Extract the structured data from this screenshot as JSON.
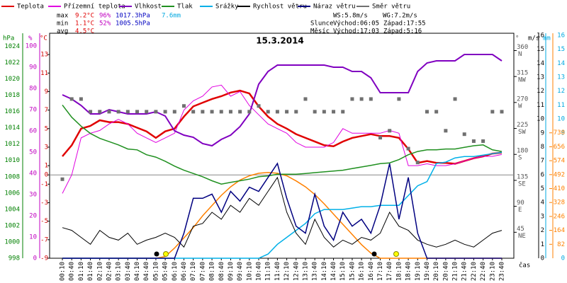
{
  "chart_data": {
    "type": "line",
    "title": "15.3.2014",
    "x_label": "čas",
    "categories": [
      "00:10",
      "00:40",
      "01:10",
      "01:40",
      "02:10",
      "02:40",
      "03:10",
      "03:40",
      "04:10",
      "04:40",
      "05:10",
      "05:40",
      "06:10",
      "06:40",
      "07:10",
      "07:40",
      "08:10",
      "08:40",
      "09:10",
      "09:40",
      "10:10",
      "10:40",
      "11:10",
      "11:40",
      "12:10",
      "12:40",
      "13:10",
      "13:40",
      "14:10",
      "14:40",
      "15:10",
      "15:40",
      "16:10",
      "16:40",
      "17:10",
      "17:40",
      "18:10",
      "18:40",
      "19:10",
      "19:40",
      "20:10",
      "20:40",
      "21:10",
      "21:40",
      "22:10",
      "22:40",
      "23:10",
      "23:40"
    ],
    "axes": {
      "pressure": {
        "label": "hPa",
        "color": "#008000",
        "lim": [
          998,
          1025.6
        ],
        "ticks": [
          998,
          1000,
          1002,
          1004,
          1006,
          1008,
          1010,
          1012,
          1014,
          1016,
          1018,
          1020,
          1022,
          1024
        ]
      },
      "humidity": {
        "label": "%",
        "color": "#c000c0",
        "lim": [
          0,
          106
        ],
        "ticks": [
          0,
          10,
          20,
          30,
          40,
          50,
          60,
          70,
          80,
          90,
          100
        ]
      },
      "temperature": {
        "label": "°C",
        "color": "#d00000",
        "lim": [
          -9,
          15.3
        ],
        "ticks": [
          -9,
          -7,
          -5,
          -3,
          -1,
          0,
          1,
          3,
          5,
          7,
          9,
          11,
          13
        ]
      },
      "direction": {
        "label": "°",
        "color": "#555555",
        "lim": [
          0,
          390
        ],
        "ticks": [
          45,
          90,
          135,
          180,
          225,
          270,
          315,
          360
        ],
        "tick_names": [
          "NE",
          "E",
          "SE",
          "S",
          "SW",
          "W",
          "NW",
          "N"
        ]
      },
      "wind": {
        "label": "m/s",
        "color": "#000000",
        "lim": [
          0,
          16.15
        ],
        "ticks": [
          0,
          1,
          2,
          3,
          4,
          5,
          6,
          7,
          8,
          9,
          10,
          11,
          12,
          13,
          14,
          15,
          16
        ]
      },
      "rain": {
        "label": "mm",
        "color": "#00a8e0",
        "lim": [
          0,
          16.15
        ],
        "ticks": [
          0,
          9,
          10,
          11,
          12,
          13,
          14,
          15,
          16
        ]
      },
      "radiation": {
        "color": "#ff8000",
        "lim": [
          0,
          1324
        ],
        "ticks": [
          82,
          164,
          246,
          328,
          410,
          492,
          574,
          656,
          738
        ]
      }
    },
    "zero_line": {
      "axis": "temperature",
      "value": 0
    },
    "series": [
      {
        "name": "Teplota",
        "color": "#e00000",
        "axis": "temperature",
        "width": 2.5,
        "values": [
          2.0,
          3.2,
          5.0,
          5.3,
          5.9,
          5.7,
          5.7,
          5.5,
          5.1,
          4.7,
          4.0,
          4.7,
          5.0,
          6.3,
          7.4,
          7.8,
          8.2,
          8.5,
          8.9,
          9.1,
          8.8,
          7.4,
          6.3,
          5.5,
          5.0,
          4.4,
          4.0,
          3.6,
          3.2,
          3.1,
          3.6,
          4.0,
          4.2,
          4.4,
          4.2,
          4.2,
          4.0,
          2.8,
          1.3,
          1.5,
          1.3,
          1.3,
          1.2,
          1.5,
          1.8,
          2.0,
          2.3,
          2.4
        ]
      },
      {
        "name": "Přízemní teplota",
        "color": "#e000e0",
        "axis": "temperature",
        "width": 1,
        "values": [
          -2.0,
          0,
          4,
          4.5,
          4.8,
          5.5,
          6,
          5.5,
          4.5,
          4,
          3.5,
          4,
          4.5,
          7,
          8,
          8.5,
          9.5,
          9.7,
          8.5,
          9,
          7.5,
          6.5,
          5.5,
          5,
          4.5,
          3.5,
          3,
          3,
          3,
          3.5,
          5,
          4.5,
          4.5,
          4.5,
          4.5,
          4.8,
          4.5,
          1,
          1,
          1.2,
          1,
          1,
          1.2,
          1.5,
          1.8,
          2.0,
          2.0,
          2.2
        ]
      },
      {
        "name": "Vlhkost",
        "color": "#8000c0",
        "axis": "humidity",
        "width": 2,
        "values": [
          77,
          75,
          72,
          68,
          68,
          70,
          69,
          68,
          68,
          68,
          69,
          67,
          60,
          58,
          57,
          54,
          53,
          56,
          58,
          62,
          68,
          82,
          88,
          91,
          91,
          91,
          91,
          91,
          91,
          90,
          90,
          88,
          88,
          85,
          78,
          78,
          78,
          78,
          88,
          92,
          93,
          93,
          93,
          96,
          96,
          96,
          96,
          93
        ]
      },
      {
        "name": "Tlak",
        "color": "#209020",
        "axis": "pressure",
        "width": 1.5,
        "values": [
          1016.8,
          1015.3,
          1014.2,
          1013.3,
          1012.7,
          1012.3,
          1011.9,
          1011.4,
          1011.3,
          1010.7,
          1010.4,
          1009.9,
          1009.3,
          1008.8,
          1008.4,
          1008.0,
          1007.5,
          1007.1,
          1007.3,
          1007.5,
          1007.7,
          1008.0,
          1008.1,
          1008.3,
          1008.3,
          1008.3,
          1008.4,
          1008.5,
          1008.6,
          1008.7,
          1008.8,
          1009.0,
          1009.2,
          1009.4,
          1009.6,
          1009.7,
          1010.1,
          1010.7,
          1011.1,
          1011.3,
          1011.3,
          1011.4,
          1011.4,
          1011.6,
          1011.8,
          1011.9,
          1011.3,
          1011.1
        ]
      },
      {
        "name": "Srážky",
        "color": "#00b0e8",
        "axis": "rain",
        "width": 1.5,
        "values": [
          0,
          0,
          0,
          0,
          0,
          0,
          0,
          0,
          0,
          0,
          0,
          0,
          0,
          0,
          0,
          0,
          0,
          0,
          0,
          0,
          0,
          0,
          0.3,
          1.0,
          1.5,
          2.0,
          2.5,
          3.2,
          3.5,
          3.5,
          3.5,
          3.6,
          3.7,
          3.7,
          3.8,
          3.8,
          3.8,
          4.5,
          5.2,
          5.5,
          6.8,
          6.9,
          7.2,
          7.3,
          7.3,
          7.4,
          7.5,
          7.6
        ]
      },
      {
        "name": "Rychlost větru",
        "color": "#000000",
        "axis": "wind",
        "width": 1,
        "values": [
          2.2,
          2.0,
          1.5,
          1.0,
          2.0,
          1.5,
          1.3,
          1.8,
          1.0,
          1.3,
          1.5,
          1.8,
          1.5,
          0.8,
          2.3,
          2.5,
          3.3,
          2.8,
          3.8,
          3.3,
          4.3,
          3.8,
          4.8,
          5.8,
          3.3,
          1.8,
          1.0,
          2.8,
          1.5,
          0.8,
          1.3,
          1.0,
          1.5,
          1.3,
          1.8,
          3.3,
          2.3,
          2.0,
          1.3,
          1.0,
          0.8,
          1.0,
          1.3,
          1.0,
          0.8,
          1.3,
          1.8,
          2.0
        ]
      },
      {
        "name": "Náraz větru",
        "color": "#000080",
        "axis": "wind",
        "width": 1.5,
        "values": [
          0,
          0,
          0,
          0,
          0,
          0,
          0,
          0,
          0,
          0,
          0,
          0,
          0,
          1.8,
          4.3,
          4.3,
          4.6,
          3.3,
          4.8,
          4.1,
          5.1,
          4.8,
          5.8,
          6.8,
          4.3,
          2.3,
          1.8,
          4.6,
          2.3,
          1.3,
          3.3,
          2.3,
          2.8,
          1.8,
          3.8,
          6.8,
          2.8,
          5.8,
          1.8,
          0,
          0,
          0,
          0,
          0,
          0,
          0,
          0,
          0
        ]
      },
      {
        "name": "Směr větru",
        "color": "#707070",
        "axis": "direction",
        "style": "dots",
        "values": [
          137,
          276,
          276,
          254,
          254,
          254,
          254,
          254,
          254,
          254,
          254,
          254,
          254,
          264,
          254,
          254,
          254,
          254,
          254,
          254,
          254,
          264,
          254,
          254,
          254,
          254,
          276,
          254,
          254,
          254,
          254,
          276,
          276,
          276,
          209,
          221,
          276,
          190,
          166,
          254,
          254,
          221,
          276,
          215,
          203,
          203,
          254,
          254
        ]
      }
    ],
    "radiation": {
      "color": "#ff8000",
      "axis": "radiation",
      "values": [
        0,
        0,
        0,
        0,
        0,
        0,
        0,
        0,
        0,
        0,
        0,
        10,
        60,
        120,
        180,
        250,
        310,
        370,
        420,
        460,
        485,
        500,
        505,
        500,
        485,
        455,
        420,
        375,
        320,
        260,
        200,
        140,
        80,
        30,
        0,
        0,
        0,
        0,
        0,
        0,
        0,
        0,
        0,
        0,
        0,
        0,
        0,
        0
      ]
    },
    "stats": [
      [
        "max",
        "9.2°C",
        "96%",
        "1017.3hPa",
        "7.6mm"
      ],
      [
        "min",
        "1.1°C",
        "52%",
        "1005.5hPa"
      ],
      [
        "avg",
        "4.5°C"
      ]
    ],
    "wind_info": [
      "WS:5.8m/s",
      "WG:7.2m/s"
    ],
    "sun": [
      "Slunce",
      "Východ:06:05",
      "Západ:17:55"
    ],
    "moon": [
      "Měsíc",
      "Východ:17:03",
      "Západ:5:16"
    ]
  }
}
